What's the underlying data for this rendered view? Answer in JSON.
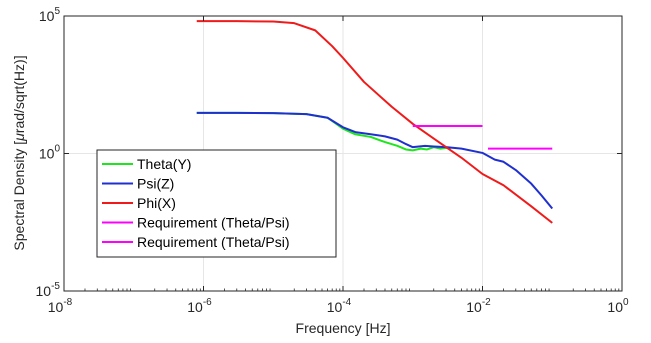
{
  "chart_data": {
    "type": "line",
    "xscale": "log",
    "yscale": "log",
    "xlim": [
      1e-08,
      1
    ],
    "ylim": [
      1e-05,
      100000.0
    ],
    "xlabel": "Frequency [Hz]",
    "ylabel_parts": [
      "Spectral Density [",
      "μ",
      "rad/sqrt(Hz)]"
    ],
    "xticks": [
      {
        "value": 1e-08,
        "base": "10",
        "exp": "-8"
      },
      {
        "value": 1e-06,
        "base": "10",
        "exp": "-6"
      },
      {
        "value": 0.0001,
        "base": "10",
        "exp": "-4"
      },
      {
        "value": 0.01,
        "base": "10",
        "exp": "-2"
      },
      {
        "value": 1,
        "base": "10",
        "exp": "0"
      }
    ],
    "yticks": [
      {
        "value": 1e-05,
        "base": "10",
        "exp": "-5"
      },
      {
        "value": 1,
        "base": "10",
        "exp": "0"
      },
      {
        "value": 100000.0,
        "base": "10",
        "exp": "5"
      }
    ],
    "grid": true,
    "legend_position": "bottom-left",
    "series": [
      {
        "name": "Theta(Y)",
        "color": "#1ee61e",
        "points": [
          [
            8e-07,
            30
          ],
          [
            3e-06,
            30
          ],
          [
            1e-05,
            29.5
          ],
          [
            3e-05,
            27
          ],
          [
            6e-05,
            20
          ],
          [
            0.0001,
            8
          ],
          [
            0.00015,
            5
          ],
          [
            0.00025,
            4
          ],
          [
            0.0004,
            2.6
          ],
          [
            0.0006,
            1.9
          ],
          [
            0.0008,
            1.4
          ],
          [
            0.001,
            1.3
          ],
          [
            0.0013,
            1.5
          ],
          [
            0.0016,
            1.4
          ],
          [
            0.002,
            1.7
          ],
          [
            0.0025,
            1.5
          ],
          [
            0.003,
            1.6
          ],
          [
            0.0035,
            1.45
          ]
        ]
      },
      {
        "name": "Psi(Z)",
        "color": "#1f2fd0",
        "points": [
          [
            8e-07,
            30
          ],
          [
            3e-06,
            30
          ],
          [
            1e-05,
            29.5
          ],
          [
            3e-05,
            27
          ],
          [
            6e-05,
            20
          ],
          [
            0.0001,
            9
          ],
          [
            0.00015,
            6
          ],
          [
            0.00025,
            5
          ],
          [
            0.0004,
            4.2
          ],
          [
            0.0006,
            3.2
          ],
          [
            0.0008,
            2.2
          ],
          [
            0.001,
            1.7
          ],
          [
            0.0015,
            1.9
          ],
          [
            0.002,
            1.8
          ],
          [
            0.003,
            1.7
          ],
          [
            0.005,
            1.5
          ],
          [
            0.01,
            1.05
          ],
          [
            0.015,
            0.6
          ],
          [
            0.02,
            0.5
          ],
          [
            0.03,
            0.25
          ],
          [
            0.05,
            0.08
          ],
          [
            0.07,
            0.03
          ],
          [
            0.1,
            0.01
          ]
        ]
      },
      {
        "name": "Phi(X)",
        "color": "#f01a1a",
        "points": [
          [
            8e-07,
            65000.0
          ],
          [
            3e-06,
            65000.0
          ],
          [
            1e-05,
            63000.0
          ],
          [
            2e-05,
            55000.0
          ],
          [
            4e-05,
            30000.0
          ],
          [
            7e-05,
            8000
          ],
          [
            0.0001,
            3000
          ],
          [
            0.0002,
            400
          ],
          [
            0.0005,
            50
          ],
          [
            0.001,
            12
          ],
          [
            0.002,
            3.5
          ],
          [
            0.005,
            0.7
          ],
          [
            0.01,
            0.18
          ],
          [
            0.02,
            0.07
          ],
          [
            0.05,
            0.012
          ],
          [
            0.1,
            0.003
          ]
        ]
      },
      {
        "name": "Requirement (Theta/Psi)",
        "color": "#ff00ff",
        "points": [
          [
            0.001,
            10
          ],
          [
            0.01,
            10
          ]
        ]
      },
      {
        "name": "Requirement (Theta/Psi)",
        "color": "#ff00ff",
        "points": [
          [
            0.012,
            1.5
          ],
          [
            0.1,
            1.5
          ]
        ]
      }
    ]
  }
}
